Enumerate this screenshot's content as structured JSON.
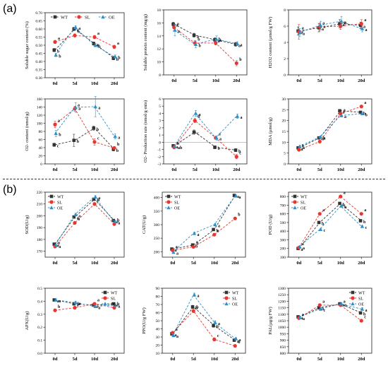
{
  "figure": {
    "panel_labels": [
      "(a)",
      "(b)"
    ],
    "x_categories": [
      "0d",
      "5d",
      "10d",
      "20d"
    ],
    "colors": {
      "WT": "#333333",
      "SL": "#e8352f",
      "OE": "#2f90c8"
    }
  },
  "chart_data": [
    {
      "id": "c0",
      "type": "line",
      "ylabel": "Soluble sugar content (%)",
      "ylim": [
        0.3,
        0.7
      ],
      "yticks": [
        0.3,
        0.35,
        0.4,
        0.45,
        0.5,
        0.55,
        0.6,
        0.65,
        0.7
      ],
      "ytick_labels": [
        "0.30",
        "0.35",
        "0.40",
        "0.45",
        "0.50",
        "0.55",
        "0.60",
        "0.65",
        "0.70"
      ],
      "categories": [
        "0d",
        "5d",
        "10d",
        "20d"
      ],
      "legend": {
        "position": "top",
        "entries": [
          "WT",
          "SL",
          "OE"
        ]
      },
      "series": [
        {
          "name": "WT",
          "values": [
            0.47,
            0.6,
            0.51,
            0.42
          ],
          "err": [
            0.01,
            0.01,
            0.01,
            0.01
          ],
          "letters": [
            "b",
            "a",
            "a",
            "b"
          ]
        },
        {
          "name": "SL",
          "values": [
            0.52,
            0.56,
            0.55,
            0.49
          ],
          "err": [
            0.01,
            0.01,
            0.01,
            0.01
          ],
          "letters": [
            "a",
            "b",
            "a",
            "a"
          ]
        },
        {
          "name": "OE",
          "values": [
            0.44,
            0.61,
            0.5,
            0.43
          ],
          "err": [
            0.01,
            0.01,
            0.01,
            0.01
          ],
          "letters": [
            "b",
            "a",
            "b",
            "b"
          ]
        }
      ]
    },
    {
      "id": "c1",
      "type": "line",
      "ylabel": "Soluble protein content (mg/g)",
      "ylim": [
        8,
        18
      ],
      "yticks": [
        8,
        10,
        12,
        14,
        16,
        18
      ],
      "ytick_labels": [
        "8",
        "10",
        "12",
        "14",
        "16",
        "18"
      ],
      "categories": [
        "0d",
        "5d",
        "10d",
        "20d"
      ],
      "series": [
        {
          "name": "WT",
          "values": [
            15.8,
            14.1,
            13.4,
            12.7
          ],
          "err": [
            0.3,
            0.3,
            0.3,
            0.3
          ],
          "letters": [
            "a",
            "a",
            "a",
            "a"
          ]
        },
        {
          "name": "SL",
          "values": [
            15.3,
            12.9,
            12.9,
            9.8
          ],
          "err": [
            0.5,
            0.4,
            0.3,
            0.4
          ],
          "letters": [
            "a",
            "b",
            "b",
            "b"
          ]
        },
        {
          "name": "OE",
          "values": [
            14.9,
            12.7,
            13.5,
            12.8
          ],
          "err": [
            0.9,
            0.5,
            0.5,
            0.3
          ],
          "letters": [
            "a",
            "b",
            "a",
            "a"
          ]
        }
      ]
    },
    {
      "id": "c2",
      "type": "line",
      "ylabel": "H2O2 content (µmol/g FW)",
      "ylim": [
        0,
        8
      ],
      "yticks": [
        0,
        2,
        4,
        6,
        8
      ],
      "ytick_labels": [
        "0",
        "2",
        "4",
        "6",
        "8"
      ],
      "categories": [
        "0d",
        "5d",
        "10d",
        "20d"
      ],
      "series": [
        {
          "name": "WT",
          "values": [
            5.4,
            5.8,
            6.3,
            6.1
          ],
          "err": [
            0.5,
            0.5,
            0.5,
            0.4
          ],
          "letters": [
            "a",
            "a",
            "a",
            "a"
          ]
        },
        {
          "name": "SL",
          "values": [
            5.3,
            5.9,
            6.0,
            6.3
          ],
          "err": [
            0.9,
            0.5,
            0.4,
            0.5
          ],
          "letters": [
            "a",
            "a",
            "a",
            "a"
          ]
        },
        {
          "name": "OE",
          "values": [
            5.2,
            6.1,
            6.6,
            5.7
          ],
          "err": [
            0.5,
            0.5,
            0.6,
            0.4
          ],
          "letters": [
            "a",
            "a",
            "a",
            "a"
          ]
        }
      ]
    },
    {
      "id": "c3",
      "type": "line",
      "ylabel": "O2- content (nmol/g)",
      "ylim": [
        0,
        160
      ],
      "yticks": [
        0,
        20,
        40,
        60,
        80,
        100,
        120,
        140,
        160
      ],
      "ytick_labels": [
        "0",
        "20",
        "40",
        "60",
        "80",
        "100",
        "120",
        "140",
        "160"
      ],
      "categories": [
        "0d",
        "5d",
        "10d",
        "20d"
      ],
      "series": [
        {
          "name": "WT",
          "values": [
            47,
            58,
            88,
            36
          ],
          "err": [
            4,
            15,
            5,
            4
          ],
          "letters": [
            "c",
            "b",
            "b",
            "b"
          ]
        },
        {
          "name": "SL",
          "values": [
            97,
            136,
            54,
            39
          ],
          "err": [
            8,
            6,
            8,
            4
          ],
          "letters": [
            "a",
            "a",
            "c",
            "b"
          ]
        },
        {
          "name": "OE",
          "values": [
            75,
            139,
            141,
            68
          ],
          "err": [
            8,
            12,
            25,
            6
          ],
          "letters": [
            "b",
            "a",
            "a",
            "a"
          ]
        }
      ]
    },
    {
      "id": "c4",
      "type": "line",
      "ylabel": "O2- Production rate (nmol/g·min)",
      "ylim": [
        -3,
        6
      ],
      "yticks": [
        -3,
        -2,
        -1,
        0,
        1,
        2,
        3,
        4,
        5,
        6
      ],
      "ytick_labels": [
        "-3",
        "-2",
        "-1",
        "0",
        "1",
        "2",
        "3",
        "4",
        "5",
        "6"
      ],
      "categories": [
        "0d",
        "5d",
        "10d",
        "20d"
      ],
      "series": [
        {
          "name": "WT",
          "values": [
            -0.5,
            1.4,
            -0.7,
            -1.1
          ],
          "err": [
            0.2,
            0.3,
            0.2,
            0.2
          ],
          "letters": [
            "a",
            "c",
            "b",
            "b"
          ]
        },
        {
          "name": "SL",
          "values": [
            -0.7,
            3.0,
            0.6,
            -2.0
          ],
          "err": [
            0.2,
            0.3,
            0.2,
            0.3
          ],
          "letters": [
            "b",
            "b",
            "a",
            "c"
          ]
        },
        {
          "name": "OE",
          "values": [
            -0.6,
            4.0,
            0.6,
            3.6
          ],
          "err": [
            0.2,
            0.4,
            0.3,
            0.3
          ],
          "letters": [
            "ab",
            "a",
            "a",
            "a"
          ]
        }
      ]
    },
    {
      "id": "c5",
      "type": "line",
      "ylabel": "MDA (µmol/g)",
      "ylim": [
        0,
        30
      ],
      "yticks": [
        0,
        5,
        10,
        15,
        20,
        25,
        30
      ],
      "ytick_labels": [
        "0",
        "5",
        "10",
        "15",
        "20",
        "25",
        "30"
      ],
      "categories": [
        "0d",
        "5d",
        "10d",
        "20d"
      ],
      "series": [
        {
          "name": "WT",
          "values": [
            7.4,
            12.0,
            24.5,
            23.8
          ],
          "err": [
            0.6,
            0.5,
            0.6,
            0.6
          ],
          "letters": [
            "a",
            "a",
            "a",
            "b"
          ]
        },
        {
          "name": "SL",
          "values": [
            6.5,
            10.3,
            23.2,
            26.5
          ],
          "err": [
            0.5,
            0.5,
            0.6,
            0.6
          ],
          "letters": [
            "b",
            "b",
            "a",
            "a"
          ]
        },
        {
          "name": "OE",
          "values": [
            8.0,
            12.4,
            22.3,
            23.2
          ],
          "err": [
            0.6,
            0.5,
            0.6,
            0.6
          ],
          "letters": [
            "a",
            "a",
            "a",
            "b"
          ]
        }
      ]
    },
    {
      "id": "c6",
      "type": "line",
      "ylabel": "SOD(U/g)",
      "ylim": [
        165,
        220
      ],
      "yticks": [
        170,
        180,
        190,
        200,
        210,
        220
      ],
      "ytick_labels": [
        "170",
        "180",
        "190",
        "200",
        "210",
        "220"
      ],
      "categories": [
        "0d",
        "5d",
        "10d",
        "20d"
      ],
      "legend": {
        "position": "top-left",
        "entries": [
          "WT",
          "SL",
          "OE"
        ]
      },
      "series": [
        {
          "name": "WT",
          "values": [
            176,
            199,
            214,
            196
          ],
          "err": [
            1,
            1,
            1,
            1
          ],
          "letters": [
            "a",
            "a",
            "a",
            "a"
          ]
        },
        {
          "name": "SL",
          "values": [
            174,
            194,
            210,
            193
          ],
          "err": [
            1,
            1,
            1,
            1
          ],
          "letters": [
            "a",
            "b",
            "b",
            "b"
          ]
        },
        {
          "name": "OE",
          "values": [
            175,
            201,
            216,
            195
          ],
          "err": [
            1,
            1,
            1,
            1
          ],
          "letters": [
            "a",
            "a",
            "a",
            "a"
          ]
        }
      ]
    },
    {
      "id": "c7",
      "type": "line",
      "ylabel": "CAT(U/g)",
      "ylim": [
        180,
        420
      ],
      "yticks": [
        200,
        250,
        300,
        350,
        400
      ],
      "ytick_labels": [
        "200",
        "250",
        "300",
        "350",
        "400"
      ],
      "categories": [
        "0d",
        "5d",
        "10d",
        "20d"
      ],
      "legend": {
        "position": "top-left",
        "entries": [
          "WT",
          "SL",
          "OE"
        ]
      },
      "series": [
        {
          "name": "WT",
          "values": [
            210,
            225,
            282,
            408
          ],
          "err": [
            4,
            4,
            4,
            4
          ],
          "letters": [
            "a",
            "b",
            "b",
            "a"
          ]
        },
        {
          "name": "SL",
          "values": [
            205,
            218,
            263,
            323
          ],
          "err": [
            4,
            4,
            4,
            4
          ],
          "letters": [
            "a",
            "b",
            "c",
            "b"
          ]
        },
        {
          "name": "OE",
          "values": [
            198,
            268,
            300,
            406
          ],
          "err": [
            4,
            4,
            4,
            4
          ],
          "letters": [
            "a",
            "a",
            "a",
            "a"
          ]
        }
      ]
    },
    {
      "id": "c8",
      "type": "line",
      "ylabel": "POD (U/g)",
      "ylim": [
        100,
        850
      ],
      "yticks": [
        100,
        200,
        300,
        400,
        500,
        600,
        700,
        800
      ],
      "ytick_labels": [
        "100",
        "200",
        "300",
        "400",
        "500",
        "600",
        "700",
        "800"
      ],
      "categories": [
        "0d",
        "5d",
        "10d",
        "20d"
      ],
      "legend": {
        "position": "top-left",
        "entries": [
          "WT",
          "SL",
          "OE"
        ]
      },
      "series": [
        {
          "name": "WT",
          "values": [
            200,
            500,
            720,
            520
          ],
          "err": [
            10,
            10,
            10,
            10
          ],
          "letters": [
            "a",
            "b",
            "b",
            "b"
          ]
        },
        {
          "name": "SL",
          "values": [
            210,
            600,
            800,
            600
          ],
          "err": [
            10,
            10,
            10,
            10
          ],
          "letters": [
            "a",
            "a",
            "a",
            "a"
          ]
        },
        {
          "name": "OE",
          "values": [
            220,
            420,
            690,
            455
          ],
          "err": [
            10,
            10,
            10,
            10
          ],
          "letters": [
            "a",
            "c",
            "b",
            "c"
          ]
        }
      ]
    },
    {
      "id": "c9",
      "type": "line",
      "ylabel": "APX(U/g)",
      "ylim": [
        0,
        0.5
      ],
      "yticks": [
        0.0,
        0.1,
        0.2,
        0.3,
        0.4,
        0.5
      ],
      "ytick_labels": [
        "0.0",
        "0.1",
        "0.2",
        "0.3",
        "0.4",
        "0.5"
      ],
      "categories": [
        "0d",
        "5d",
        "10d",
        "20d"
      ],
      "legend": {
        "position": "top-right",
        "entries": [
          "WT",
          "SL",
          "OE"
        ]
      },
      "series": [
        {
          "name": "WT",
          "values": [
            0.41,
            0.38,
            0.37,
            0.38
          ],
          "err": [
            0.01,
            0.01,
            0.01,
            0.01
          ],
          "letters": [
            "a",
            "a",
            "a",
            "a"
          ]
        },
        {
          "name": "SL",
          "values": [
            0.33,
            0.35,
            0.38,
            0.35
          ],
          "err": [
            0.01,
            0.01,
            0.01,
            0.01
          ],
          "letters": [
            "b",
            "b",
            "a",
            "b"
          ]
        },
        {
          "name": "OE",
          "values": [
            0.41,
            0.39,
            0.36,
            0.37
          ],
          "err": [
            0.01,
            0.01,
            0.01,
            0.01
          ],
          "letters": [
            "a",
            "a",
            "a",
            "a"
          ]
        }
      ]
    },
    {
      "id": "c10",
      "type": "line",
      "ylabel": "PPO(U/g FW)",
      "ylim": [
        10,
        90
      ],
      "yticks": [
        10,
        20,
        30,
        40,
        50,
        60,
        70,
        80,
        90
      ],
      "ytick_labels": [
        "10",
        "20",
        "30",
        "40",
        "50",
        "60",
        "70",
        "80",
        "90"
      ],
      "categories": [
        "0d",
        "5d",
        "10d",
        "20d"
      ],
      "legend": {
        "position": "top-right",
        "entries": [
          "WT",
          "SL",
          "OE"
        ]
      },
      "series": [
        {
          "name": "WT",
          "values": [
            34,
            67,
            44,
            26
          ],
          "err": [
            2,
            2,
            2,
            1
          ],
          "letters": [
            "a",
            "b",
            "b",
            "a"
          ]
        },
        {
          "name": "SL",
          "values": [
            35,
            62,
            27,
            19
          ],
          "err": [
            2,
            2,
            2,
            1
          ],
          "letters": [
            "a",
            "b",
            "c",
            "b"
          ]
        },
        {
          "name": "OE",
          "values": [
            32,
            82,
            48,
            28
          ],
          "err": [
            2,
            2,
            2,
            1
          ],
          "letters": [
            "a",
            "a",
            "a",
            "a"
          ]
        }
      ]
    },
    {
      "id": "c11",
      "type": "line",
      "ylabel": "PAL(µg/g FW)",
      "ylim": [
        800,
        1300
      ],
      "yticks": [
        800,
        850,
        900,
        950,
        1000,
        1050,
        1100,
        1150,
        1200,
        1250,
        1300
      ],
      "ytick_labels": [
        "800",
        "850",
        "900",
        "950",
        "1000",
        "1050",
        "1100",
        "1150",
        "1200",
        "1250",
        "1300"
      ],
      "categories": [
        "0d",
        "5d",
        "10d",
        "20d"
      ],
      "legend": {
        "position": "top-right",
        "entries": [
          "WT",
          "SL",
          "OE"
        ]
      },
      "series": [
        {
          "name": "WT",
          "values": [
            1080,
            1150,
            1180,
            1110
          ],
          "err": [
            10,
            10,
            10,
            10
          ],
          "letters": [
            "a",
            "b",
            "a",
            "b"
          ]
        },
        {
          "name": "SL",
          "values": [
            1070,
            1170,
            1170,
            1050
          ],
          "err": [
            10,
            10,
            10,
            10
          ],
          "letters": [
            "a",
            "a",
            "a",
            "c"
          ]
        },
        {
          "name": "OE",
          "values": [
            1075,
            1140,
            1180,
            1140
          ],
          "err": [
            10,
            10,
            10,
            10
          ],
          "letters": [
            "a",
            "c",
            "a",
            "a"
          ]
        }
      ]
    }
  ]
}
